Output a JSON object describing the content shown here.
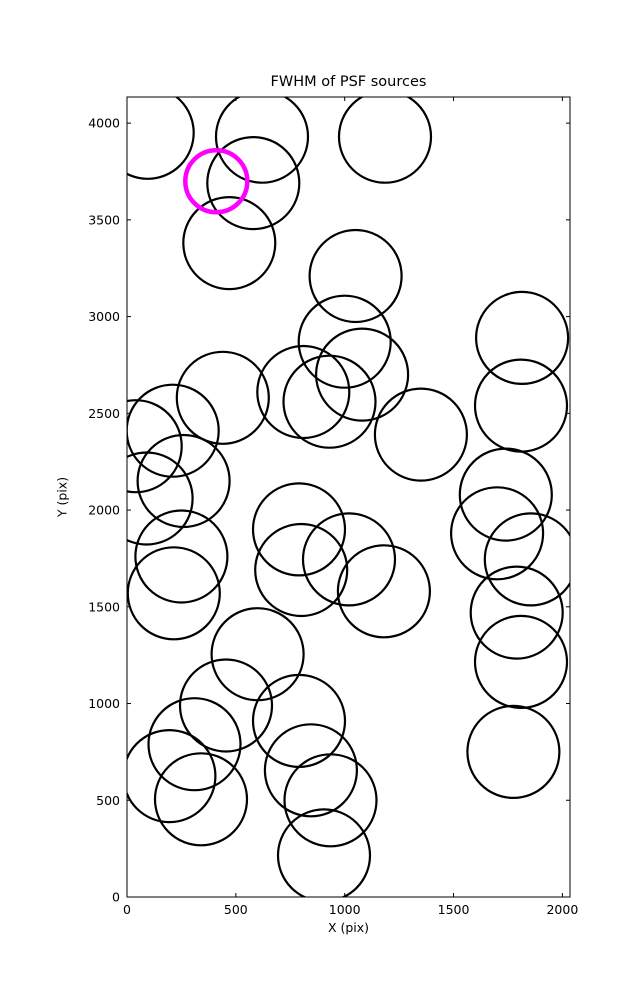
{
  "chart_data": {
    "type": "scatter",
    "title": "FWHM of PSF sources",
    "xlabel": "X (pix)",
    "ylabel": "Y (pix)",
    "xlim": [
      0,
      2035
    ],
    "ylim": [
      0,
      4135
    ],
    "xticks": [
      0,
      500,
      1000,
      1500,
      2000
    ],
    "yticks": [
      0,
      500,
      1000,
      1500,
      2000,
      2500,
      3000,
      3500,
      4000
    ],
    "grid": false,
    "legend": "none",
    "series": [
      {
        "name": "psf_sources",
        "marker": "open-circle",
        "marker_name": "psf-circle",
        "color": "#000000",
        "fill": "none",
        "radius_px": 46,
        "stroke_width": 2.2,
        "points": [
          [
            95,
            3950
          ],
          [
            620,
            3930
          ],
          [
            580,
            3690
          ],
          [
            1185,
            3930
          ],
          [
            470,
            3380
          ],
          [
            1050,
            3210
          ],
          [
            1000,
            2870
          ],
          [
            1080,
            2700
          ],
          [
            930,
            2560
          ],
          [
            810,
            2610
          ],
          [
            1815,
            2890
          ],
          [
            1810,
            2540
          ],
          [
            1350,
            2390
          ],
          [
            440,
            2580
          ],
          [
            210,
            2410
          ],
          [
            40,
            2330
          ],
          [
            260,
            2150
          ],
          [
            90,
            2060
          ],
          [
            1740,
            2080
          ],
          [
            1700,
            1880
          ],
          [
            1855,
            1745
          ],
          [
            1790,
            1470
          ],
          [
            1810,
            1215
          ],
          [
            1775,
            750
          ],
          [
            790,
            1900
          ],
          [
            1020,
            1745
          ],
          [
            800,
            1690
          ],
          [
            1180,
            1580
          ],
          [
            250,
            1760
          ],
          [
            215,
            1570
          ],
          [
            600,
            1255
          ],
          [
            455,
            990
          ],
          [
            790,
            910
          ],
          [
            310,
            790
          ],
          [
            195,
            625
          ],
          [
            340,
            505
          ],
          [
            845,
            655
          ],
          [
            935,
            500
          ],
          [
            905,
            215
          ]
        ]
      },
      {
        "name": "highlighted_source",
        "marker": "open-circle",
        "marker_name": "highlighted-psf-circle",
        "color": "#ff00ff",
        "fill": "none",
        "radius_px": 31,
        "stroke_width": 4.5,
        "points": [
          [
            410,
            3700
          ]
        ]
      }
    ]
  }
}
